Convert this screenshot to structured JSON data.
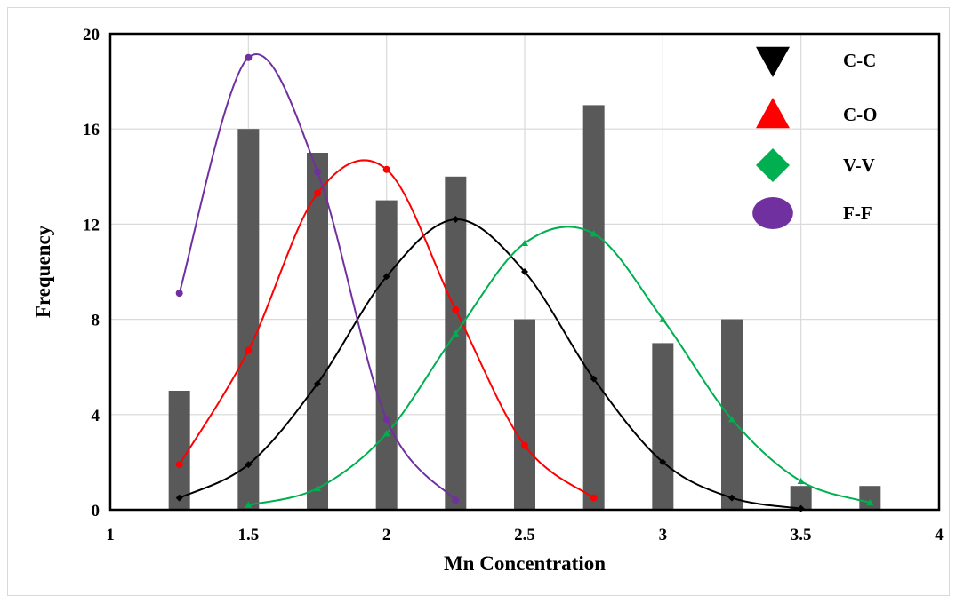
{
  "chart_data": {
    "type": "bar",
    "xlabel": "Mn Concentration",
    "ylabel": "Frequency",
    "xlim": [
      1,
      4
    ],
    "ylim": [
      0,
      20
    ],
    "x_ticks": [
      "1",
      "1.5",
      "2",
      "2.5",
      "3",
      "3.5",
      "4"
    ],
    "y_ticks": [
      "0",
      "4",
      "8",
      "12",
      "16",
      "20"
    ],
    "grid": true,
    "legend_position": "top-right",
    "bars": {
      "color": "#595959",
      "x": [
        1.25,
        1.5,
        1.75,
        2.0,
        2.25,
        2.5,
        2.75,
        3.0,
        3.25,
        3.5,
        3.75
      ],
      "values": [
        5,
        16,
        15,
        13,
        14,
        8,
        17,
        7,
        8,
        1,
        1
      ]
    },
    "series": [
      {
        "name": "C-C",
        "color": "#000000",
        "marker": "diamond",
        "legend_marker": "triangle-down",
        "x": [
          1.25,
          1.5,
          1.75,
          2.0,
          2.25,
          2.5,
          2.75,
          3.0,
          3.25,
          3.5
        ],
        "values": [
          0.5,
          1.9,
          5.3,
          9.8,
          12.2,
          10.0,
          5.5,
          2.0,
          0.5,
          0.05
        ]
      },
      {
        "name": "C-O",
        "color": "#ff0000",
        "marker": "circle",
        "legend_marker": "triangle-up",
        "x": [
          1.25,
          1.5,
          1.75,
          2.0,
          2.25,
          2.5,
          2.75
        ],
        "values": [
          1.9,
          6.7,
          13.3,
          14.3,
          8.4,
          2.7,
          0.5
        ]
      },
      {
        "name": "V-V",
        "color": "#00b050",
        "marker": "triangle",
        "legend_marker": "diamond",
        "x": [
          1.5,
          1.75,
          2.0,
          2.25,
          2.5,
          2.75,
          3.0,
          3.25,
          3.5,
          3.75
        ],
        "values": [
          0.2,
          0.9,
          3.2,
          7.4,
          11.2,
          11.6,
          8.0,
          3.8,
          1.2,
          0.3
        ]
      },
      {
        "name": "F-F",
        "color": "#7030a0",
        "marker": "circle",
        "legend_marker": "ellipse",
        "x": [
          1.25,
          1.5,
          1.75,
          2.0,
          2.25
        ],
        "values": [
          9.1,
          19.0,
          14.2,
          3.8,
          0.4
        ]
      }
    ]
  }
}
